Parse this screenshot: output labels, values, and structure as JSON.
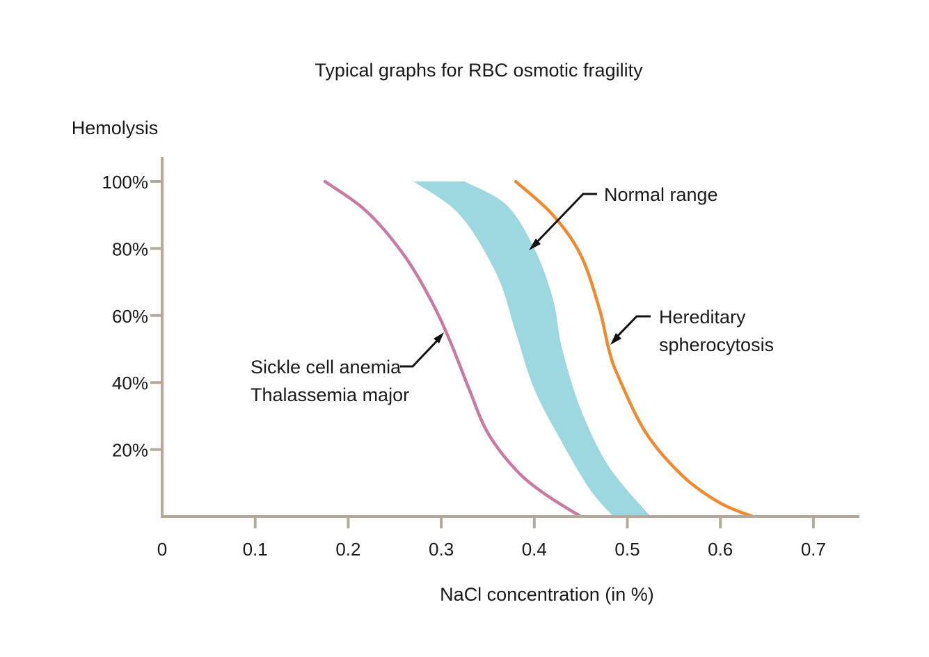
{
  "chart_data": {
    "type": "line",
    "title": "Typical graphs for RBC osmotic fragility",
    "xlabel": "NaCl concentration (in %)",
    "ylabel": "Hemolysis",
    "xlim": [
      0,
      0.75
    ],
    "ylim": [
      0,
      100
    ],
    "x_ticks": [
      "0",
      "0.1",
      "0.2",
      "0.3",
      "0.4",
      "0.5",
      "0.6",
      "0.7"
    ],
    "x_tick_values": [
      0,
      0.1,
      0.2,
      0.3,
      0.4,
      0.5,
      0.6,
      0.7
    ],
    "y_ticks": [
      "20%",
      "40%",
      "60%",
      "80%",
      "100%"
    ],
    "y_tick_values": [
      20,
      40,
      60,
      80,
      100
    ],
    "grid": false,
    "legend": "none",
    "series": [
      {
        "name": "Sickle cell anemia / Thalassemia major",
        "color": "#c77ba3",
        "x": [
          0.175,
          0.22,
          0.26,
          0.29,
          0.31,
          0.33,
          0.35,
          0.38,
          0.41,
          0.45
        ],
        "y": [
          100,
          91,
          78,
          64,
          52,
          38,
          25,
          14,
          7,
          0
        ]
      },
      {
        "name": "Hereditary spherocytosis",
        "color": "#f08a2f",
        "x": [
          0.38,
          0.42,
          0.45,
          0.47,
          0.48,
          0.49,
          0.52,
          0.56,
          0.6,
          0.635
        ],
        "y": [
          100,
          90,
          78,
          62,
          50,
          42,
          25,
          12,
          4,
          0
        ]
      }
    ],
    "band": {
      "name": "Normal range",
      "color": "#9dd8e0",
      "lower": {
        "x": [
          0.27,
          0.32,
          0.36,
          0.38,
          0.4,
          0.43,
          0.46,
          0.485
        ],
        "y": [
          100,
          90,
          72,
          55,
          38,
          22,
          8,
          0
        ]
      },
      "upper": {
        "x": [
          0.325,
          0.37,
          0.4,
          0.42,
          0.43,
          0.45,
          0.48,
          0.525
        ],
        "y": [
          100,
          93,
          80,
          65,
          50,
          32,
          15,
          0
        ]
      }
    },
    "annotations": [
      {
        "text": "Normal range"
      },
      {
        "text": "Hereditary"
      },
      {
        "text": "spherocytosis"
      },
      {
        "text": "Sickle cell anemia"
      },
      {
        "text": "Thalassemia major"
      }
    ],
    "axis_color": "#b5aa98",
    "arrow_color": "#111111"
  }
}
